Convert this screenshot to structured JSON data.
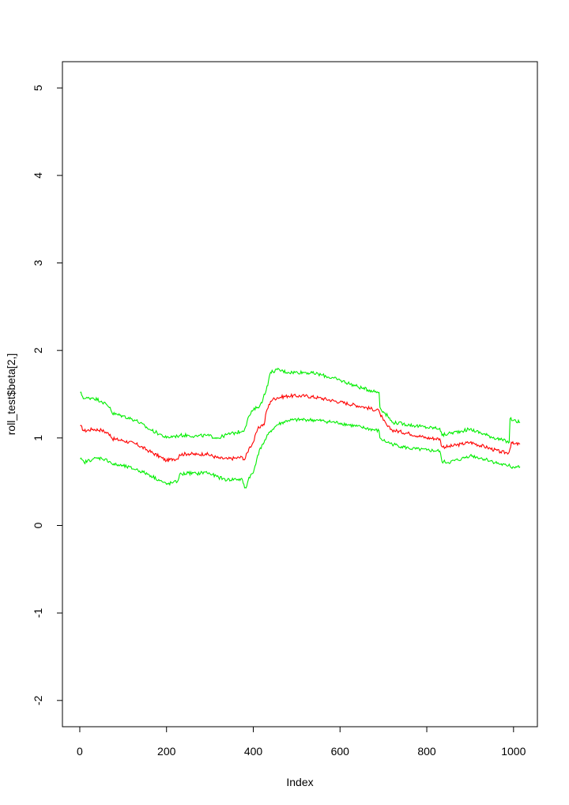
{
  "chart_data": {
    "type": "line",
    "title": "",
    "xlabel": "Index",
    "ylabel": "roll_test$beta[2,]",
    "xlim": [
      -40,
      1055
    ],
    "ylim": [
      -2.3,
      5.3
    ],
    "x_ticks": [
      0,
      200,
      400,
      600,
      800,
      1000
    ],
    "y_ticks": [
      -2,
      -1,
      0,
      1,
      2,
      3,
      4,
      5
    ],
    "grid": false,
    "legend": "none",
    "series": [
      {
        "color": "#ff0000",
        "points": [
          [
            1,
            1.14
          ],
          [
            10,
            1.08
          ],
          [
            30,
            1.1
          ],
          [
            50,
            1.09
          ],
          [
            70,
            1.04
          ],
          [
            75,
            0.99
          ],
          [
            100,
            0.97
          ],
          [
            130,
            0.93
          ],
          [
            160,
            0.85
          ],
          [
            190,
            0.77
          ],
          [
            200,
            0.74
          ],
          [
            215,
            0.76
          ],
          [
            225,
            0.76
          ],
          [
            230,
            0.81
          ],
          [
            250,
            0.82
          ],
          [
            270,
            0.81
          ],
          [
            290,
            0.82
          ],
          [
            320,
            0.77
          ],
          [
            340,
            0.76
          ],
          [
            360,
            0.77
          ],
          [
            375,
            0.78
          ],
          [
            380,
            0.75
          ],
          [
            390,
            0.88
          ],
          [
            400,
            0.95
          ],
          [
            410,
            1.1
          ],
          [
            420,
            1.15
          ],
          [
            425,
            1.15
          ],
          [
            430,
            1.3
          ],
          [
            440,
            1.42
          ],
          [
            445,
            1.44
          ],
          [
            455,
            1.46
          ],
          [
            480,
            1.48
          ],
          [
            520,
            1.48
          ],
          [
            550,
            1.46
          ],
          [
            600,
            1.41
          ],
          [
            650,
            1.36
          ],
          [
            690,
            1.31
          ],
          [
            692,
            1.28
          ],
          [
            700,
            1.2
          ],
          [
            710,
            1.13
          ],
          [
            720,
            1.09
          ],
          [
            760,
            1.05
          ],
          [
            800,
            1.0
          ],
          [
            830,
            0.99
          ],
          [
            835,
            0.9
          ],
          [
            850,
            0.9
          ],
          [
            880,
            0.93
          ],
          [
            900,
            0.95
          ],
          [
            940,
            0.89
          ],
          [
            970,
            0.84
          ],
          [
            985,
            0.83
          ],
          [
            990,
            0.84
          ],
          [
            995,
            0.95
          ],
          [
            1000,
            0.93
          ],
          [
            1015,
            0.93
          ]
        ]
      },
      {
        "color": "#00ee00",
        "points": [
          [
            1,
            1.52
          ],
          [
            10,
            1.45
          ],
          [
            30,
            1.46
          ],
          [
            50,
            1.42
          ],
          [
            70,
            1.35
          ],
          [
            75,
            1.28
          ],
          [
            100,
            1.25
          ],
          [
            130,
            1.2
          ],
          [
            160,
            1.1
          ],
          [
            190,
            1.03
          ],
          [
            200,
            1.0
          ],
          [
            215,
            1.02
          ],
          [
            225,
            1.02
          ],
          [
            230,
            1.03
          ],
          [
            250,
            1.03
          ],
          [
            270,
            1.02
          ],
          [
            290,
            1.03
          ],
          [
            320,
            1.0
          ],
          [
            340,
            1.04
          ],
          [
            360,
            1.06
          ],
          [
            375,
            1.08
          ],
          [
            380,
            1.1
          ],
          [
            390,
            1.25
          ],
          [
            400,
            1.32
          ],
          [
            410,
            1.35
          ],
          [
            420,
            1.4
          ],
          [
            425,
            1.5
          ],
          [
            430,
            1.55
          ],
          [
            435,
            1.65
          ],
          [
            440,
            1.75
          ],
          [
            445,
            1.76
          ],
          [
            455,
            1.78
          ],
          [
            480,
            1.75
          ],
          [
            520,
            1.75
          ],
          [
            550,
            1.73
          ],
          [
            600,
            1.66
          ],
          [
            650,
            1.57
          ],
          [
            690,
            1.52
          ],
          [
            692,
            1.35
          ],
          [
            700,
            1.3
          ],
          [
            710,
            1.25
          ],
          [
            720,
            1.18
          ],
          [
            760,
            1.15
          ],
          [
            800,
            1.12
          ],
          [
            830,
            1.11
          ],
          [
            835,
            1.03
          ],
          [
            850,
            1.05
          ],
          [
            880,
            1.08
          ],
          [
            900,
            1.1
          ],
          [
            940,
            1.03
          ],
          [
            970,
            0.98
          ],
          [
            985,
            0.96
          ],
          [
            990,
            0.95
          ],
          [
            992,
            1.22
          ],
          [
            1000,
            1.2
          ],
          [
            1015,
            1.18
          ]
        ]
      },
      {
        "color": "#00ee00",
        "points": [
          [
            1,
            0.76
          ],
          [
            10,
            0.72
          ],
          [
            30,
            0.76
          ],
          [
            50,
            0.77
          ],
          [
            70,
            0.73
          ],
          [
            75,
            0.7
          ],
          [
            100,
            0.68
          ],
          [
            130,
            0.64
          ],
          [
            160,
            0.58
          ],
          [
            190,
            0.5
          ],
          [
            200,
            0.47
          ],
          [
            215,
            0.49
          ],
          [
            225,
            0.5
          ],
          [
            230,
            0.58
          ],
          [
            250,
            0.6
          ],
          [
            270,
            0.59
          ],
          [
            290,
            0.61
          ],
          [
            320,
            0.55
          ],
          [
            340,
            0.52
          ],
          [
            360,
            0.53
          ],
          [
            375,
            0.52
          ],
          [
            380,
            0.43
          ],
          [
            385,
            0.45
          ],
          [
            390,
            0.55
          ],
          [
            400,
            0.6
          ],
          [
            410,
            0.8
          ],
          [
            420,
            0.92
          ],
          [
            425,
            0.95
          ],
          [
            430,
            1.0
          ],
          [
            440,
            1.08
          ],
          [
            445,
            1.1
          ],
          [
            455,
            1.15
          ],
          [
            480,
            1.2
          ],
          [
            520,
            1.21
          ],
          [
            550,
            1.2
          ],
          [
            600,
            1.17
          ],
          [
            650,
            1.12
          ],
          [
            690,
            1.08
          ],
          [
            692,
            1.0
          ],
          [
            700,
            0.97
          ],
          [
            710,
            0.95
          ],
          [
            720,
            0.93
          ],
          [
            760,
            0.88
          ],
          [
            800,
            0.86
          ],
          [
            830,
            0.85
          ],
          [
            835,
            0.73
          ],
          [
            850,
            0.72
          ],
          [
            880,
            0.76
          ],
          [
            900,
            0.8
          ],
          [
            940,
            0.75
          ],
          [
            970,
            0.7
          ],
          [
            985,
            0.68
          ],
          [
            990,
            0.7
          ],
          [
            995,
            0.66
          ],
          [
            1000,
            0.67
          ],
          [
            1015,
            0.67
          ]
        ]
      }
    ]
  }
}
